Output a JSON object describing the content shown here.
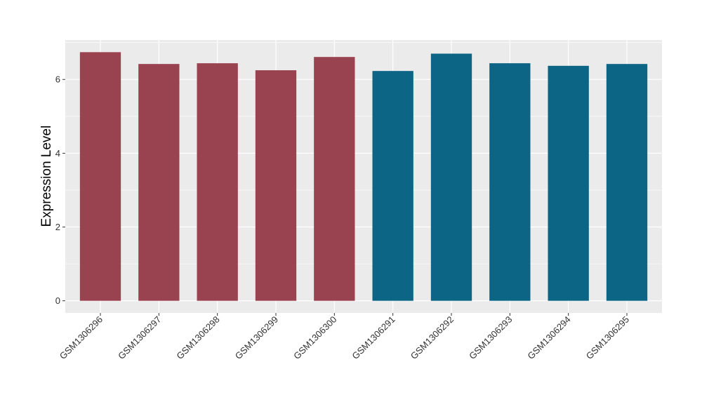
{
  "chart_data": {
    "type": "bar",
    "title": "",
    "xlabel": "",
    "ylabel": "Expression Level",
    "categories": [
      "GSM1306296",
      "GSM1306297",
      "GSM1306298",
      "GSM1306299",
      "GSM1306300",
      "GSM1306291",
      "GSM1306292",
      "GSM1306293",
      "GSM1306294",
      "GSM1306295"
    ],
    "values": [
      6.74,
      6.42,
      6.44,
      6.25,
      6.61,
      6.23,
      6.7,
      6.44,
      6.37,
      6.42
    ],
    "group_colors": [
      "#9a4350",
      "#9a4350",
      "#9a4350",
      "#9a4350",
      "#9a4350",
      "#0c6585",
      "#0c6585",
      "#0c6585",
      "#0c6585",
      "#0c6585"
    ],
    "ylim": [
      -0.33,
      7.07
    ],
    "yticks": [
      0,
      2,
      4,
      6
    ],
    "grid": true,
    "panel_background": "#ebebeb",
    "gridline_color": "#ffffff"
  }
}
